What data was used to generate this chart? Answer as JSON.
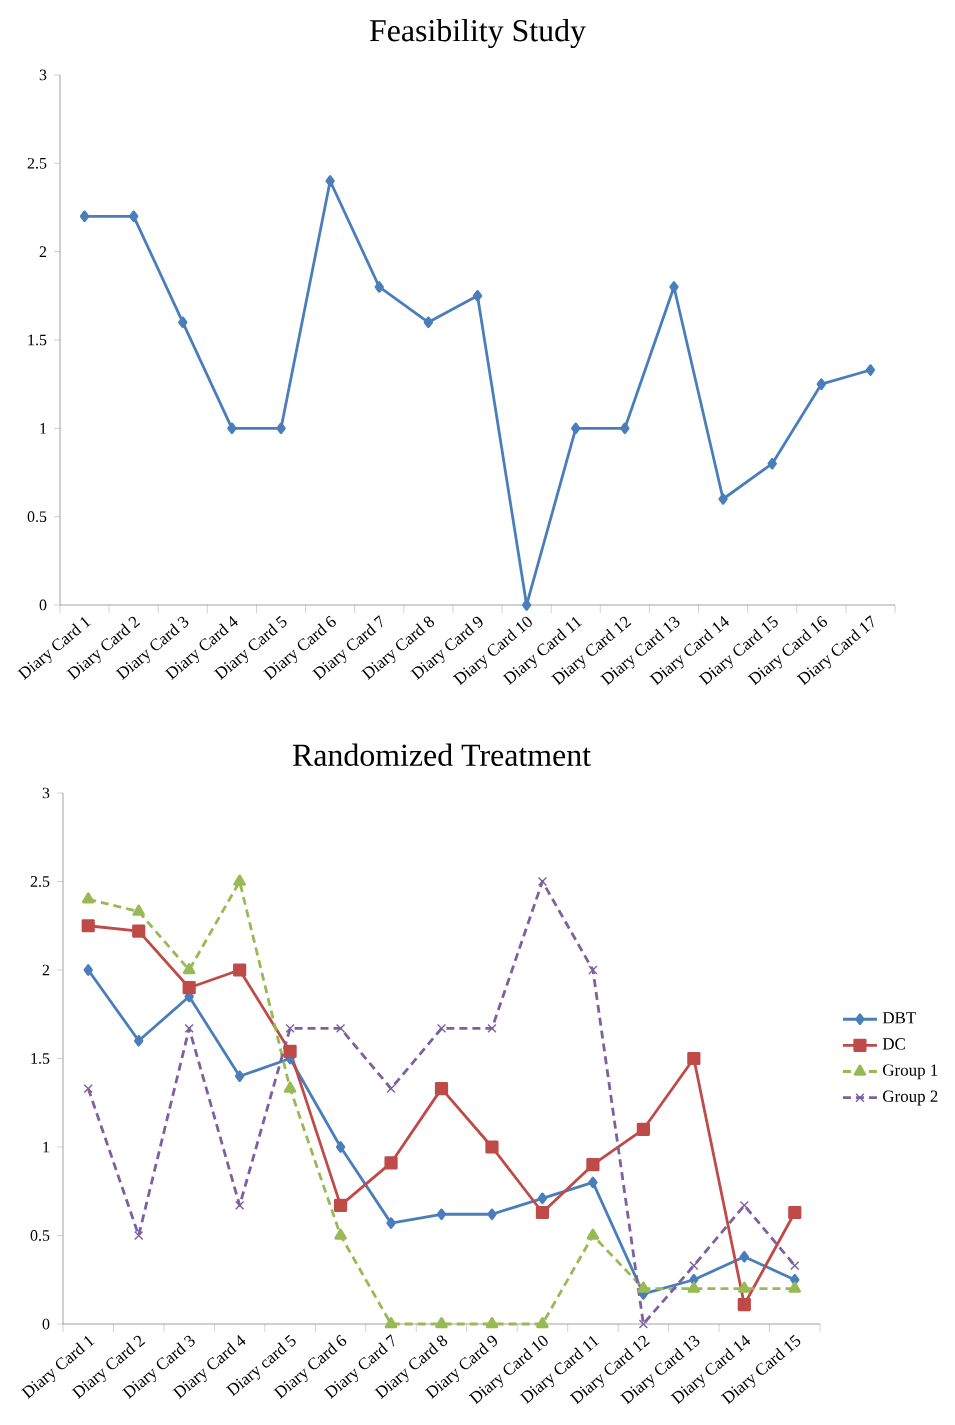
{
  "chart_data": [
    {
      "type": "line",
      "title": "Feasibility Study",
      "categories": [
        "Diary Card 1",
        "Diary Card 2",
        "Diary Card 3",
        "Diary Card 4",
        "Diary Card 5",
        "Diary Card 6",
        "Diary Card 7",
        "Diary Card 8",
        "Diary Card 9",
        "Diary Card 10",
        "Diary Card 11",
        "Diary Card 12",
        "Diary Card 13",
        "Diary Card 14",
        "Diary Card 15",
        "Diary Card 16",
        "Diary Card 17"
      ],
      "series": [
        {
          "color": "#4a7ebb",
          "values": [
            2.2,
            2.2,
            1.6,
            1.0,
            1.0,
            2.4,
            1.8,
            1.6,
            1.75,
            0,
            1.0,
            1.0,
            1.8,
            0.6,
            0.8,
            1.25,
            1.33
          ]
        }
      ],
      "ylim": [
        0,
        3
      ],
      "yticks": [
        0,
        0.5,
        1,
        1.5,
        2,
        2.5,
        3
      ],
      "marker": "diamond",
      "line_style": "solid",
      "legend": false
    },
    {
      "type": "line",
      "title": "Randomized Treatment",
      "categories": [
        "Diary Card 1",
        "Diary Card 2",
        "Diary Card 3",
        "Diary Card 4",
        "Diary card 5",
        "Diary Card 6",
        "Diary Card 7",
        "Diary Card 8",
        "Diary Card 9",
        "Diary Card 10",
        "Diary Card 11",
        "Diary Card 12",
        "Diary Card 13",
        "Diary Card 14",
        "Diary Card 15"
      ],
      "series": [
        {
          "name": "DBT",
          "color": "#4a7ebb",
          "marker": "diamond",
          "line_style": "solid",
          "values": [
            2.0,
            1.6,
            1.85,
            1.4,
            1.5,
            1.0,
            0.57,
            0.62,
            0.62,
            0.71,
            0.8,
            0.17,
            0.25,
            0.38,
            0.25
          ]
        },
        {
          "name": "DC",
          "color": "#be4b48",
          "marker": "square",
          "line_style": "solid",
          "values": [
            2.25,
            2.22,
            1.9,
            2.0,
            1.54,
            0.67,
            0.91,
            1.33,
            1.0,
            0.63,
            0.9,
            1.1,
            1.5,
            0.11,
            0.63
          ]
        },
        {
          "name": "Group 1",
          "color": "#98b954",
          "marker": "triangle",
          "line_style": "dashed",
          "values": [
            2.4,
            2.33,
            2.0,
            2.5,
            1.33,
            0.5,
            0,
            0,
            0,
            0,
            0.5,
            0.2,
            0.2,
            0.2,
            0.2
          ]
        },
        {
          "name": "Group 2",
          "color": "#7d60a0",
          "marker": "cross",
          "line_style": "dashed",
          "values": [
            1.33,
            0.5,
            1.67,
            0.67,
            1.67,
            1.67,
            1.33,
            1.67,
            1.67,
            2.5,
            2.0,
            0,
            0.33,
            0.67,
            0.33
          ]
        }
      ],
      "ylim": [
        0,
        3
      ],
      "yticks": [
        0,
        0.5,
        1,
        1.5,
        2,
        2.5,
        3
      ],
      "legend": "right"
    }
  ]
}
